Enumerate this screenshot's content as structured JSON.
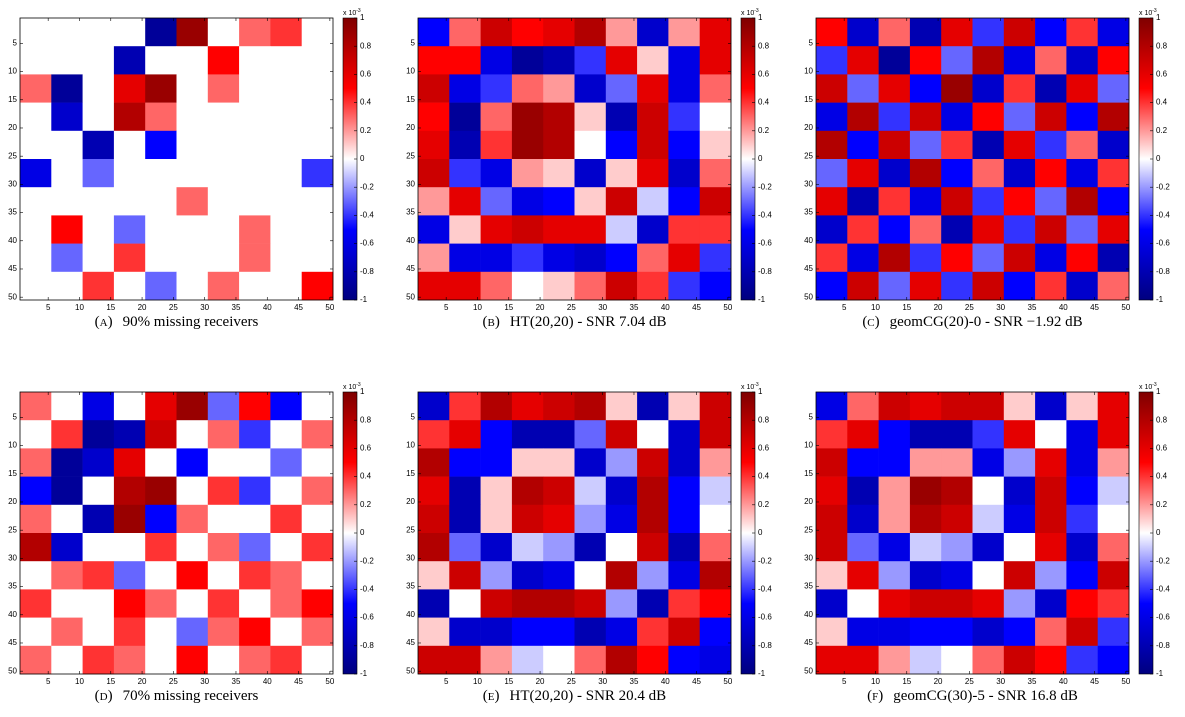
{
  "chart_data": [
    {
      "type": "heatmap",
      "label": "(a)",
      "caption": "90% missing receivers",
      "x": [
        3,
        8,
        13,
        18,
        23,
        28,
        33,
        38,
        43,
        48
      ],
      "y": [
        3,
        8,
        13,
        18,
        23,
        28,
        33,
        38,
        43,
        48
      ],
      "values": [
        [
          0,
          0,
          0,
          0,
          -0.9,
          0.9,
          0,
          0.3,
          0.4,
          0
        ],
        [
          0,
          0,
          0,
          -0.8,
          0,
          0,
          0.5,
          0,
          0,
          0
        ],
        [
          0.3,
          -0.9,
          0,
          0.6,
          0.9,
          0,
          0.3,
          0,
          0,
          0
        ],
        [
          0,
          -0.7,
          0,
          0.8,
          0.3,
          0,
          0,
          0,
          0,
          0
        ],
        [
          0,
          0,
          -0.8,
          0,
          -0.5,
          0,
          0,
          0,
          0,
          0
        ],
        [
          -0.6,
          0,
          -0.3,
          0,
          0,
          0,
          0,
          0,
          0,
          -0.4
        ],
        [
          0,
          0,
          0,
          0,
          0,
          0.3,
          0,
          0,
          0,
          0
        ],
        [
          0,
          0.5,
          0,
          -0.3,
          0,
          0,
          0,
          0.3,
          0,
          0
        ],
        [
          0,
          -0.3,
          0,
          0.4,
          0,
          0,
          0,
          0.3,
          0,
          0
        ],
        [
          0,
          0,
          0.4,
          0,
          -0.3,
          0,
          0.3,
          0,
          0,
          0.5
        ]
      ],
      "xlim": [
        0.5,
        50.5
      ],
      "ylim": [
        0.5,
        50.5
      ],
      "xticks": [
        5,
        10,
        15,
        20,
        25,
        30,
        35,
        40,
        45,
        50
      ],
      "yticks": [
        5,
        10,
        15,
        20,
        25,
        30,
        35,
        40,
        45,
        50
      ],
      "clim": [
        -1,
        1
      ],
      "cticks": [
        -1,
        -0.8,
        -0.6,
        -0.4,
        -0.2,
        0,
        0.2,
        0.4,
        0.6,
        0.8,
        1
      ],
      "colorbar_scale": "x 10",
      "colorbar_exponent": "-3",
      "colormap": [
        "#00007f",
        "#0000ff",
        "#ffffff",
        "#ff0000",
        "#7f0000"
      ]
    },
    {
      "type": "heatmap",
      "label": "(b)",
      "caption": "HT(20,20) - SNR 7.04 dB",
      "x": [
        3,
        8,
        13,
        18,
        23,
        28,
        33,
        38,
        43,
        48
      ],
      "y": [
        3,
        8,
        13,
        18,
        23,
        28,
        33,
        38,
        43,
        48
      ],
      "values": [
        [
          -0.5,
          0.3,
          0.7,
          0.5,
          0.6,
          0.8,
          0.2,
          -0.7,
          0.2,
          0.6
        ],
        [
          0.5,
          0.5,
          -0.6,
          -0.9,
          -0.8,
          -0.4,
          0.6,
          0.1,
          -0.6,
          0.6
        ],
        [
          0.7,
          -0.6,
          -0.4,
          0.3,
          0.2,
          -0.7,
          -0.3,
          0.6,
          -0.6,
          0.3
        ],
        [
          0.5,
          -0.9,
          0.3,
          0.9,
          0.8,
          0.1,
          -0.8,
          0.7,
          -0.4,
          0.0
        ],
        [
          0.6,
          -0.8,
          0.4,
          0.9,
          0.8,
          0.0,
          -0.5,
          0.7,
          -0.5,
          0.1
        ],
        [
          0.7,
          -0.4,
          -0.6,
          0.2,
          0.1,
          -0.7,
          0.1,
          0.6,
          -0.7,
          0.3
        ],
        [
          0.2,
          0.6,
          -0.3,
          -0.6,
          -0.5,
          0.1,
          0.7,
          -0.1,
          -0.5,
          0.7
        ],
        [
          -0.6,
          0.1,
          0.6,
          0.7,
          0.6,
          0.6,
          -0.1,
          -0.7,
          0.4,
          0.4
        ],
        [
          0.2,
          -0.6,
          -0.6,
          -0.4,
          -0.6,
          -0.7,
          -0.5,
          0.3,
          0.6,
          -0.4
        ],
        [
          0.6,
          0.6,
          0.3,
          0.0,
          0.1,
          0.3,
          0.7,
          0.4,
          -0.4,
          -0.5
        ]
      ],
      "xlim": [
        0.5,
        50.5
      ],
      "ylim": [
        0.5,
        50.5
      ],
      "xticks": [
        5,
        10,
        15,
        20,
        25,
        30,
        35,
        40,
        45,
        50
      ],
      "yticks": [
        5,
        10,
        15,
        20,
        25,
        30,
        35,
        40,
        45,
        50
      ],
      "clim": [
        -1,
        1
      ],
      "cticks": [
        -1,
        -0.8,
        -0.6,
        -0.4,
        -0.2,
        0,
        0.2,
        0.4,
        0.6,
        0.8,
        1
      ],
      "colorbar_scale": "x 10",
      "colorbar_exponent": "-3",
      "colormap": [
        "#00007f",
        "#0000ff",
        "#ffffff",
        "#ff0000",
        "#7f0000"
      ]
    },
    {
      "type": "heatmap",
      "label": "(c)",
      "caption": "geomCG(20)-0 - SNR −1.92 dB",
      "x": [
        3,
        8,
        13,
        18,
        23,
        28,
        33,
        38,
        43,
        48
      ],
      "y": [
        3,
        8,
        13,
        18,
        23,
        28,
        33,
        38,
        43,
        48
      ],
      "values": [
        [
          0.5,
          -0.7,
          0.3,
          -0.8,
          0.6,
          -0.4,
          0.7,
          -0.5,
          0.4,
          -0.6
        ],
        [
          -0.4,
          0.6,
          -0.9,
          0.5,
          -0.3,
          0.8,
          -0.6,
          0.3,
          -0.7,
          0.5
        ],
        [
          0.7,
          -0.3,
          0.6,
          -0.5,
          0.9,
          -0.7,
          0.4,
          -0.8,
          0.6,
          -0.3
        ],
        [
          -0.6,
          0.8,
          -0.4,
          0.7,
          -0.6,
          0.5,
          -0.3,
          0.7,
          -0.5,
          0.8
        ],
        [
          0.8,
          -0.5,
          0.7,
          -0.3,
          0.4,
          -0.8,
          0.6,
          -0.4,
          0.3,
          -0.7
        ],
        [
          -0.3,
          0.6,
          -0.7,
          0.8,
          -0.5,
          0.3,
          -0.7,
          0.5,
          -0.6,
          0.4
        ],
        [
          0.6,
          -0.8,
          0.4,
          -0.6,
          0.7,
          -0.4,
          0.5,
          -0.3,
          0.8,
          -0.5
        ],
        [
          -0.7,
          0.4,
          -0.5,
          0.3,
          -0.8,
          0.6,
          -0.4,
          0.7,
          -0.3,
          0.6
        ],
        [
          0.4,
          -0.6,
          0.8,
          -0.4,
          0.5,
          -0.3,
          0.7,
          -0.6,
          0.5,
          -0.8
        ],
        [
          -0.5,
          0.7,
          -0.3,
          0.6,
          -0.4,
          0.7,
          -0.5,
          0.4,
          -0.7,
          0.3
        ]
      ],
      "xlim": [
        0.5,
        50.5
      ],
      "ylim": [
        0.5,
        50.5
      ],
      "xticks": [
        5,
        10,
        15,
        20,
        25,
        30,
        35,
        40,
        45,
        50
      ],
      "yticks": [
        5,
        10,
        15,
        20,
        25,
        30,
        35,
        40,
        45,
        50
      ],
      "clim": [
        -1,
        1
      ],
      "cticks": [
        -1,
        -0.8,
        -0.6,
        -0.4,
        -0.2,
        0,
        0.2,
        0.4,
        0.6,
        0.8,
        1
      ],
      "colorbar_scale": "x 10",
      "colorbar_exponent": "-3",
      "colormap": [
        "#00007f",
        "#0000ff",
        "#ffffff",
        "#ff0000",
        "#7f0000"
      ]
    },
    {
      "type": "heatmap",
      "label": "(d)",
      "caption": "70% missing receivers",
      "x": [
        3,
        8,
        13,
        18,
        23,
        28,
        33,
        38,
        43,
        48
      ],
      "y": [
        3,
        8,
        13,
        18,
        23,
        28,
        33,
        38,
        43,
        48
      ],
      "values": [
        [
          0.3,
          0,
          -0.6,
          0,
          0.6,
          0.9,
          -0.3,
          0.5,
          -0.5,
          0
        ],
        [
          0,
          0.4,
          -0.9,
          -0.8,
          0.7,
          0,
          0.3,
          -0.4,
          0,
          0.3
        ],
        [
          0.3,
          -0.9,
          -0.7,
          0.6,
          0,
          -0.5,
          0,
          0,
          -0.3,
          0
        ],
        [
          -0.5,
          -0.9,
          0,
          0.8,
          0.9,
          0,
          0.4,
          -0.4,
          0,
          0.3
        ],
        [
          0.3,
          0,
          -0.8,
          0.9,
          -0.5,
          0.3,
          0,
          0,
          0.4,
          0
        ],
        [
          0.8,
          -0.7,
          0,
          0,
          0.4,
          0,
          0.3,
          -0.3,
          0,
          0.4
        ],
        [
          0,
          0.3,
          0.4,
          -0.3,
          0,
          0.5,
          0,
          0.4,
          0.3,
          0
        ],
        [
          0.4,
          0,
          0,
          0.5,
          0.3,
          0,
          0.4,
          0,
          0.3,
          0.5
        ],
        [
          0,
          0.3,
          0,
          0.4,
          0,
          -0.3,
          0.3,
          0.5,
          0,
          0.3
        ],
        [
          0.3,
          0,
          0.4,
          0.3,
          0,
          0.5,
          0,
          0.3,
          0.4,
          0
        ]
      ],
      "xlim": [
        0.5,
        50.5
      ],
      "ylim": [
        0.5,
        50.5
      ],
      "xticks": [
        5,
        10,
        15,
        20,
        25,
        30,
        35,
        40,
        45,
        50
      ],
      "yticks": [
        5,
        10,
        15,
        20,
        25,
        30,
        35,
        40,
        45,
        50
      ],
      "clim": [
        -1,
        1
      ],
      "cticks": [
        -1,
        -0.8,
        -0.6,
        -0.4,
        -0.2,
        0,
        0.2,
        0.4,
        0.6,
        0.8,
        1
      ],
      "colorbar_scale": "x 10",
      "colorbar_exponent": "-3",
      "colormap": [
        "#00007f",
        "#0000ff",
        "#ffffff",
        "#ff0000",
        "#7f0000"
      ]
    },
    {
      "type": "heatmap",
      "label": "(e)",
      "caption": "HT(20,20) - SNR 20.4 dB",
      "x": [
        3,
        8,
        13,
        18,
        23,
        28,
        33,
        38,
        43,
        48
      ],
      "y": [
        3,
        8,
        13,
        18,
        23,
        28,
        33,
        38,
        43,
        48
      ],
      "values": [
        [
          -0.7,
          0.4,
          0.8,
          0.6,
          0.7,
          0.8,
          0.1,
          -0.8,
          0.1,
          0.7
        ],
        [
          0.4,
          0.6,
          -0.5,
          -0.8,
          -0.8,
          -0.3,
          0.7,
          0.0,
          -0.7,
          0.7
        ],
        [
          0.8,
          -0.5,
          -0.5,
          0.1,
          0.1,
          -0.7,
          -0.2,
          0.7,
          -0.7,
          0.2
        ],
        [
          0.6,
          -0.8,
          0.1,
          0.8,
          0.7,
          -0.1,
          -0.7,
          0.8,
          -0.5,
          -0.1
        ],
        [
          0.7,
          -0.8,
          0.1,
          0.7,
          0.6,
          -0.2,
          -0.6,
          0.8,
          -0.5,
          0.0
        ],
        [
          0.8,
          -0.3,
          -0.7,
          -0.1,
          -0.2,
          -0.8,
          0.0,
          0.7,
          -0.8,
          0.3
        ],
        [
          0.1,
          0.7,
          -0.2,
          -0.7,
          -0.6,
          0.0,
          0.8,
          -0.2,
          -0.6,
          0.8
        ],
        [
          -0.8,
          0.0,
          0.7,
          0.8,
          0.8,
          0.7,
          -0.2,
          -0.8,
          0.4,
          0.5
        ],
        [
          0.1,
          -0.7,
          -0.7,
          -0.5,
          -0.5,
          -0.8,
          -0.6,
          0.4,
          0.7,
          -0.5
        ],
        [
          0.7,
          0.7,
          0.2,
          -0.1,
          0.0,
          0.3,
          0.8,
          0.5,
          -0.5,
          -0.6
        ]
      ],
      "xlim": [
        0.5,
        50.5
      ],
      "ylim": [
        0.5,
        50.5
      ],
      "xticks": [
        5,
        10,
        15,
        20,
        25,
        30,
        35,
        40,
        45,
        50
      ],
      "yticks": [
        5,
        10,
        15,
        20,
        25,
        30,
        35,
        40,
        45,
        50
      ],
      "clim": [
        -1,
        1
      ],
      "cticks": [
        -1,
        -0.8,
        -0.6,
        -0.4,
        -0.2,
        0,
        0.2,
        0.4,
        0.6,
        0.8,
        1
      ],
      "colorbar_scale": "x 10",
      "colorbar_exponent": "-3",
      "colormap": [
        "#00007f",
        "#0000ff",
        "#ffffff",
        "#ff0000",
        "#7f0000"
      ]
    },
    {
      "type": "heatmap",
      "label": "(f)",
      "caption": "geomCG(30)-5 - SNR 16.8 dB",
      "x": [
        3,
        8,
        13,
        18,
        23,
        28,
        33,
        38,
        43,
        48
      ],
      "y": [
        3,
        8,
        13,
        18,
        23,
        28,
        33,
        38,
        43,
        48
      ],
      "values": [
        [
          -0.6,
          0.3,
          0.7,
          0.6,
          0.7,
          0.7,
          0.1,
          -0.7,
          0.1,
          0.6
        ],
        [
          0.4,
          0.6,
          -0.5,
          -0.8,
          -0.8,
          -0.4,
          0.6,
          0.0,
          -0.6,
          0.6
        ],
        [
          0.7,
          -0.5,
          -0.5,
          0.2,
          0.2,
          -0.6,
          -0.2,
          0.6,
          -0.6,
          0.2
        ],
        [
          0.6,
          -0.8,
          0.2,
          0.9,
          0.8,
          0.0,
          -0.7,
          0.7,
          -0.5,
          -0.1
        ],
        [
          0.7,
          -0.7,
          0.2,
          0.8,
          0.7,
          -0.1,
          -0.6,
          0.7,
          -0.4,
          0.0
        ],
        [
          0.7,
          -0.3,
          -0.6,
          -0.1,
          -0.2,
          -0.7,
          0.0,
          0.6,
          -0.7,
          0.3
        ],
        [
          0.1,
          0.6,
          -0.2,
          -0.7,
          -0.6,
          0.0,
          0.7,
          -0.2,
          -0.5,
          0.7
        ],
        [
          -0.7,
          0.0,
          0.6,
          0.7,
          0.7,
          0.6,
          -0.2,
          -0.7,
          0.5,
          0.4
        ],
        [
          0.1,
          -0.6,
          -0.6,
          -0.5,
          -0.5,
          -0.7,
          -0.5,
          0.3,
          0.7,
          -0.4
        ],
        [
          0.6,
          0.6,
          0.2,
          -0.1,
          0.0,
          0.3,
          0.7,
          0.5,
          -0.4,
          -0.5
        ]
      ],
      "xlim": [
        0.5,
        50.5
      ],
      "ylim": [
        0.5,
        50.5
      ],
      "xticks": [
        5,
        10,
        15,
        20,
        25,
        30,
        35,
        40,
        45,
        50
      ],
      "yticks": [
        5,
        10,
        15,
        20,
        25,
        30,
        35,
        40,
        45,
        50
      ],
      "clim": [
        -1,
        1
      ],
      "cticks": [
        -1,
        -0.8,
        -0.6,
        -0.4,
        -0.2,
        0,
        0.2,
        0.4,
        0.6,
        0.8,
        1
      ],
      "colorbar_scale": "x 10",
      "colorbar_exponent": "-3",
      "colormap": [
        "#00007f",
        "#0000ff",
        "#ffffff",
        "#ff0000",
        "#7f0000"
      ]
    }
  ]
}
